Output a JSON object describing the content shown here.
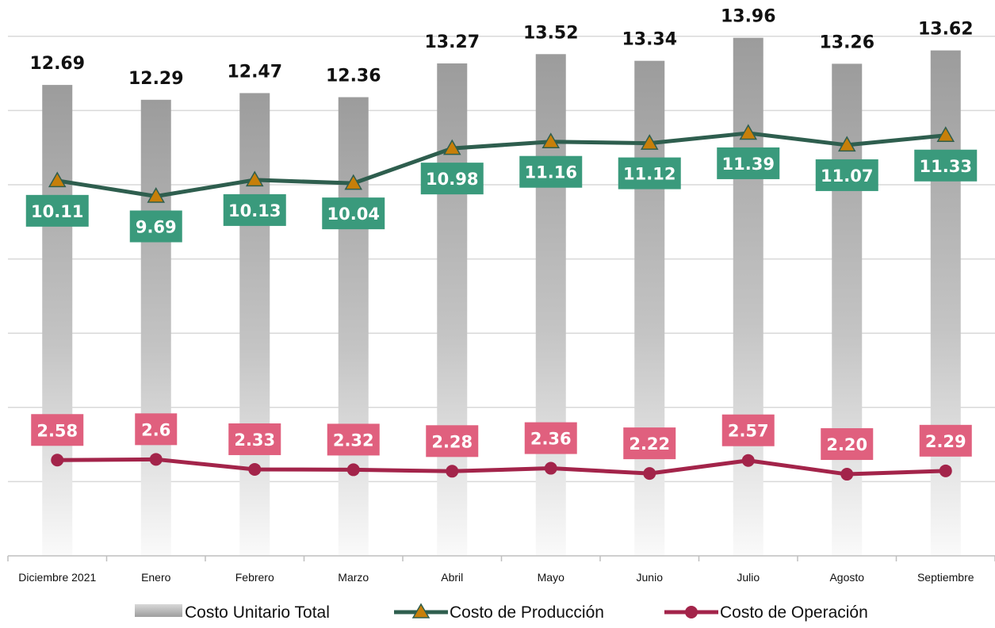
{
  "chart_data": {
    "type": "bar",
    "categories": [
      "Diciembre 2021",
      "Enero",
      "Febrero",
      "Marzo",
      "Abril",
      "Mayo",
      "Junio",
      "Julio",
      "Agosto",
      "Septiembre"
    ],
    "series": [
      {
        "name": "Costo Unitario Total",
        "type": "bar",
        "values": [
          12.69,
          12.29,
          12.47,
          12.36,
          13.27,
          13.52,
          13.34,
          13.96,
          13.26,
          13.62
        ],
        "labels": [
          "12.69",
          "12.29",
          "12.47",
          "12.36",
          "13.27",
          "13.52",
          "13.34",
          "13.96",
          "13.26",
          "13.62"
        ],
        "color": "#a6a6a6"
      },
      {
        "name": "Costo de Producción",
        "type": "line",
        "marker": "triangle",
        "values": [
          10.11,
          9.69,
          10.13,
          10.04,
          10.98,
          11.16,
          11.12,
          11.39,
          11.07,
          11.33
        ],
        "labels": [
          "10.11",
          "9.69",
          "10.13",
          "10.04",
          "10.98",
          "11.16",
          "11.12",
          "11.39",
          "11.07",
          "11.33"
        ],
        "color": "#2e5e4e",
        "marker_color": "#c77f0a",
        "label_bg": "#3a9a7c"
      },
      {
        "name": "Costo de Operación",
        "type": "line",
        "marker": "circle",
        "values": [
          2.58,
          2.6,
          2.33,
          2.32,
          2.28,
          2.36,
          2.22,
          2.57,
          2.2,
          2.29
        ],
        "labels": [
          "2.58",
          "2.6",
          "2.33",
          "2.32",
          "2.28",
          "2.36",
          "2.22",
          "2.57",
          "2.20",
          "2.29"
        ],
        "color": "#a3244a",
        "label_bg": "#e0607e"
      }
    ],
    "ylim": [
      0,
      15
    ],
    "grid": true,
    "legend_position": "bottom"
  }
}
